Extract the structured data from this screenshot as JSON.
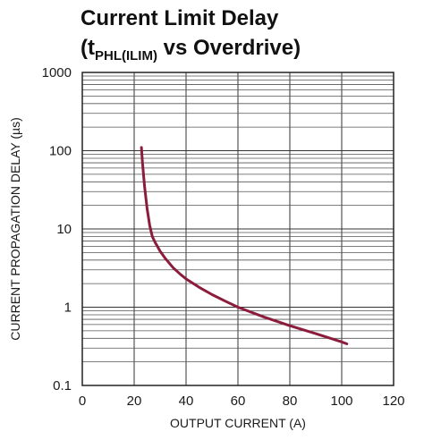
{
  "chart_data": {
    "type": "line",
    "title": "Current Limit Delay",
    "subtitle": {
      "open": "(t",
      "subscript": "PHL(ILIM)",
      "rest": " vs Overdrive)"
    },
    "xlabel": "OUTPUT CURRENT (A)",
    "ylabel": "CURRENT PROPAGATION DELAY (µs)",
    "xlim": [
      0,
      120
    ],
    "ylim": [
      0.1,
      1000
    ],
    "yscale": "log",
    "grid": true,
    "x_ticks": [
      0,
      20,
      40,
      60,
      80,
      100,
      120
    ],
    "x_tick_labels": [
      "0",
      "20",
      "40",
      "60",
      "80",
      "100",
      "120"
    ],
    "y_ticks": [
      0.1,
      1,
      10,
      100,
      1000
    ],
    "y_tick_labels": [
      "0.1",
      "1",
      "10",
      "100",
      "1000"
    ],
    "series": [
      {
        "color": "#8b1c3c",
        "x": [
          22.8,
          23.2,
          24,
          25,
          26,
          27,
          28,
          30,
          32,
          35,
          38,
          40,
          45,
          50,
          55,
          60,
          70,
          80,
          90,
          100,
          102
        ],
        "y": [
          110,
          70,
          35,
          18,
          11,
          8,
          6.8,
          5.2,
          4.2,
          3.2,
          2.6,
          2.3,
          1.8,
          1.45,
          1.2,
          1.0,
          0.75,
          0.58,
          0.46,
          0.36,
          0.34
        ]
      }
    ]
  }
}
